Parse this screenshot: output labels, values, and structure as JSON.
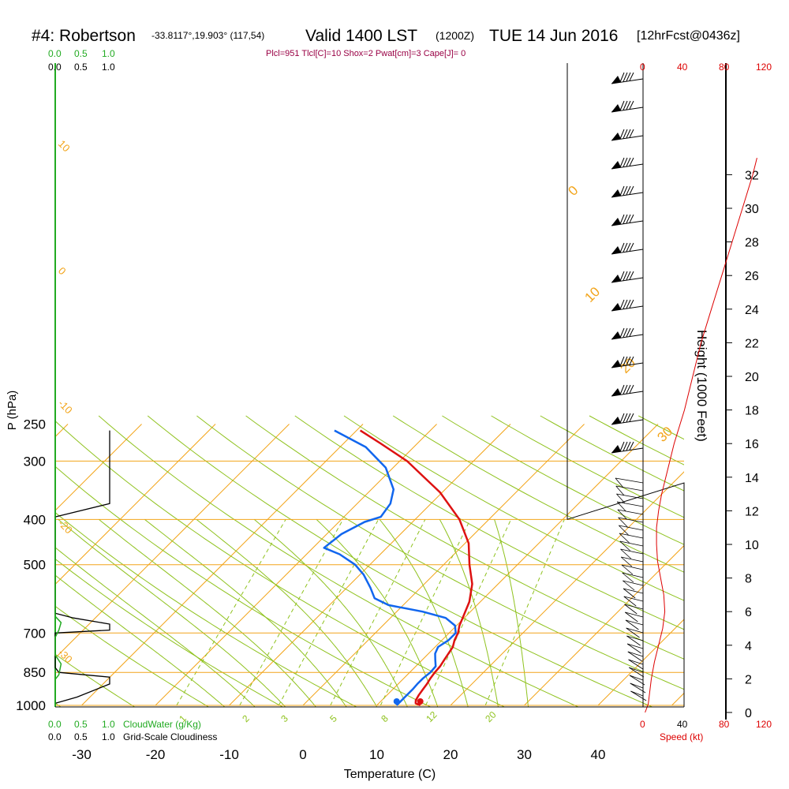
{
  "header": {
    "station": "#4: Robertson",
    "coords": "-33.8117°,19.903° (117,54)",
    "valid": "Valid 1400 LST",
    "valid_utc": "(1200Z)",
    "date": "TUE 14 Jun 2016",
    "forecast": "[12hrFcst@0436z]",
    "indices": "Plcl=951 Tlcl[C]=10 Shox=2 Pwat[cm]=3 Cape[J]= 0"
  },
  "colors": {
    "temperature": "#dd1111",
    "dewpoint": "#1166ee",
    "isotherm": "#f2a41a",
    "dry_adiabat": "#8fc21e",
    "moist_adiabat": "#8fc21e",
    "mixing_ratio": "#8fc21e",
    "cloud_water": "#22aa22",
    "wind_speed": "#dd0000",
    "title": "#000000",
    "indices": "#990044"
  },
  "chart_data": {
    "type": "line",
    "subtype": "skew-T log-P",
    "xlabel": "Temperature (C)",
    "ylabel": "P (hPa)",
    "y2label": "Height (1000 Feet)",
    "xlim": [
      -33,
      35
    ],
    "ylim": [
      1000,
      250
    ],
    "y_scale": "log",
    "x_ticks": [
      "-30",
      "-20",
      "-10",
      "0",
      "10",
      "20",
      "30",
      "40"
    ],
    "pressure_ticks": [
      "250",
      "300",
      "400",
      "500",
      "700",
      "850",
      "1000"
    ],
    "height_ticks": [
      "0",
      "2",
      "4",
      "6",
      "8",
      "10",
      "12",
      "14",
      "16",
      "18",
      "20",
      "22",
      "24",
      "26",
      "28",
      "30",
      "32"
    ],
    "grid": true,
    "temperature": [
      [
        1000,
        15.9
      ],
      [
        990,
        15.0
      ],
      [
        975,
        14.6
      ],
      [
        950,
        14.3
      ],
      [
        925,
        14.1
      ],
      [
        900,
        13.9
      ],
      [
        875,
        13.6
      ],
      [
        850,
        13.4
      ],
      [
        825,
        13.3
      ],
      [
        800,
        13.0
      ],
      [
        775,
        12.7
      ],
      [
        750,
        12.4
      ],
      [
        725,
        11.7
      ],
      [
        700,
        11.2
      ],
      [
        675,
        10.4
      ],
      [
        650,
        9.8
      ],
      [
        600,
        8.5
      ],
      [
        550,
        6.5
      ],
      [
        500,
        3.5
      ],
      [
        450,
        0.5
      ],
      [
        400,
        -4.0
      ],
      [
        350,
        -10.3
      ],
      [
        325,
        -14.5
      ],
      [
        300,
        -19.0
      ],
      [
        275,
        -25.0
      ],
      [
        258,
        -29.5
      ]
    ],
    "dewpoint": [
      [
        1000,
        12.7
      ],
      [
        990,
        12.7
      ],
      [
        950,
        12.7
      ],
      [
        925,
        12.7
      ],
      [
        900,
        12.6
      ],
      [
        875,
        12.6
      ],
      [
        850,
        12.8
      ],
      [
        825,
        12.7
      ],
      [
        800,
        11.8
      ],
      [
        775,
        10.9
      ],
      [
        750,
        10.4
      ],
      [
        725,
        10.9
      ],
      [
        700,
        10.9
      ],
      [
        675,
        9.8
      ],
      [
        650,
        7.5
      ],
      [
        630,
        3.5
      ],
      [
        610,
        -2.0
      ],
      [
        590,
        -4.8
      ],
      [
        560,
        -6.8
      ],
      [
        525,
        -9.5
      ],
      [
        500,
        -12.0
      ],
      [
        475,
        -15.5
      ],
      [
        460,
        -18.5
      ],
      [
        430,
        -18.0
      ],
      [
        405,
        -16.5
      ],
      [
        395,
        -15.0
      ],
      [
        370,
        -15.5
      ],
      [
        345,
        -17.0
      ],
      [
        310,
        -21.0
      ],
      [
        280,
        -26.5
      ],
      [
        258,
        -33.0
      ]
    ],
    "wind_speed": [
      [
        0,
        2
      ],
      [
        0.5,
        5
      ],
      [
        1,
        6
      ],
      [
        2,
        8
      ],
      [
        3,
        11
      ],
      [
        4,
        15
      ],
      [
        5,
        19
      ],
      [
        6,
        21
      ],
      [
        7,
        20
      ],
      [
        8,
        17
      ],
      [
        9,
        14
      ],
      [
        10,
        13
      ],
      [
        11,
        13
      ],
      [
        12,
        15
      ],
      [
        13,
        18
      ],
      [
        14,
        22
      ],
      [
        16,
        30
      ],
      [
        18,
        40
      ],
      [
        20,
        48
      ],
      [
        22,
        56
      ],
      [
        24,
        66
      ],
      [
        26,
        76
      ],
      [
        28,
        86
      ],
      [
        30,
        96
      ],
      [
        32,
        106
      ],
      [
        33,
        110
      ]
    ],
    "wind_speed_ticks": [
      "0",
      "40",
      "80",
      "120"
    ],
    "wind_speed_label": "Speed (kt)",
    "cloud_water_ticks": [
      "0.0",
      "0.5",
      "1.0"
    ],
    "cloud_water_label": "CloudWater (g/Kg)",
    "cloudiness_ticks": [
      "0.0",
      "0.5",
      "1.0"
    ],
    "cloudiness_label": "Grid-Scale Cloudiness",
    "isotherm_labels": [
      "10",
      "0",
      "-10",
      "-20",
      "-30"
    ],
    "isotherm_labels_right": [
      "0",
      "10",
      "20",
      "30"
    ],
    "mixing_ratio_labels": [
      "1",
      "2",
      "3",
      "5",
      "8",
      "12",
      "20"
    ],
    "cloudiness_profile": [
      [
        990,
        0.0
      ],
      [
        990,
        0.0
      ],
      [
        960,
        0.3
      ],
      [
        900,
        0.75
      ],
      [
        870,
        0.75
      ],
      [
        850,
        0.05
      ],
      [
        830,
        0.0
      ],
      [
        700,
        0.0
      ],
      [
        690,
        0.75
      ],
      [
        670,
        0.75
      ],
      [
        650,
        0.25
      ],
      [
        635,
        0.0
      ],
      [
        395,
        0.0
      ],
      [
        370,
        0.75
      ],
      [
        258,
        0.75
      ]
    ],
    "cloud_water_profile": [
      [
        1000,
        0.0
      ],
      [
        880,
        0.0
      ],
      [
        860,
        0.05
      ],
      [
        815,
        0.08
      ],
      [
        780,
        0.0
      ],
      [
        715,
        0.0
      ],
      [
        690,
        0.05
      ],
      [
        665,
        0.08
      ],
      [
        645,
        0.0
      ],
      [
        250,
        0.0
      ]
    ]
  }
}
